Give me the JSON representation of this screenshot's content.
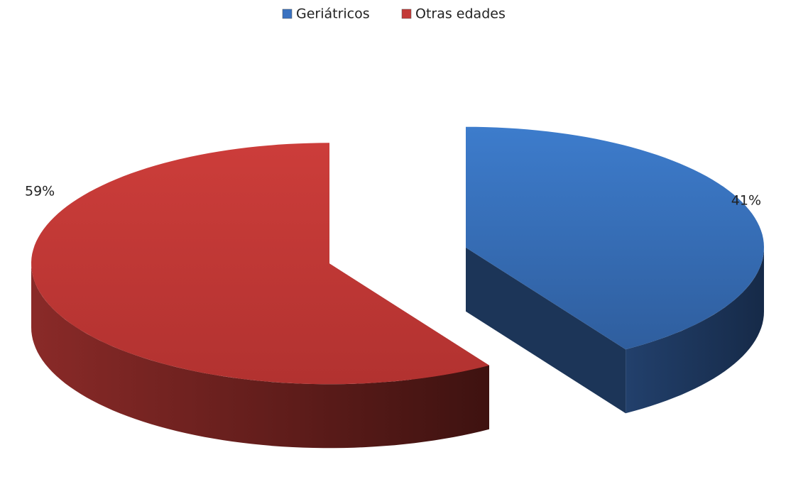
{
  "chart_data": {
    "type": "pie",
    "categories": [
      "Geriátricos",
      "Otras edades"
    ],
    "values": [
      41,
      59
    ],
    "value_labels": [
      "41%",
      "59%"
    ],
    "colors": [
      "#3a72c0",
      "#c33a38"
    ],
    "legend": "top"
  }
}
